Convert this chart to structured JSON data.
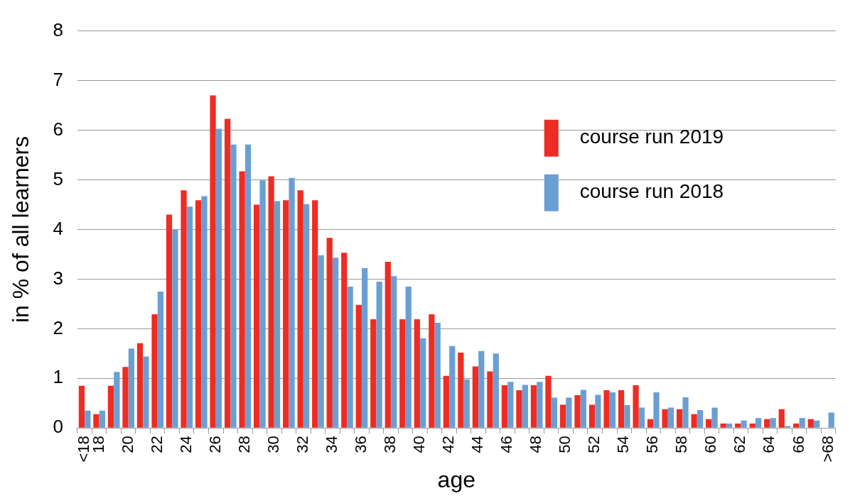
{
  "chart_data": {
    "type": "bar",
    "xlabel": "age",
    "ylabel": "in % of all learners",
    "categories": [
      "<18",
      "18",
      null,
      "20",
      null,
      "22",
      null,
      "24",
      null,
      "26",
      null,
      "28",
      null,
      "30",
      null,
      "32",
      null,
      "34",
      null,
      "36",
      null,
      "38",
      null,
      "40",
      null,
      "42",
      null,
      "44",
      null,
      "46",
      null,
      "48",
      null,
      "50",
      null,
      "52",
      null,
      "54",
      null,
      "56",
      null,
      "58",
      null,
      "60",
      null,
      "62",
      null,
      "64",
      null,
      "66",
      null,
      ">68"
    ],
    "series": [
      {
        "name": "course run 2019",
        "color": "#ee2c24",
        "values": [
          0.85,
          0.28,
          0.85,
          1.23,
          1.71,
          2.29,
          4.3,
          4.79,
          4.59,
          6.7,
          6.23,
          5.17,
          4.5,
          5.07,
          4.59,
          4.79,
          4.59,
          3.83,
          3.53,
          2.48,
          2.19,
          3.35,
          2.19,
          2.19,
          2.29,
          1.05,
          1.52,
          1.24,
          1.14,
          0.86,
          0.76,
          0.86,
          1.05,
          0.47,
          0.66,
          0.47,
          0.76,
          0.76,
          0.86,
          0.18,
          0.38,
          0.38,
          0.28,
          0.18,
          0.09,
          0.09,
          0.09,
          0.18,
          0.38,
          0.09,
          0.18,
          0
        ]
      },
      {
        "name": "course run 2018",
        "color": "#6a9fd4",
        "values": [
          0.35,
          0.35,
          1.13,
          1.6,
          1.44,
          2.75,
          4.0,
          4.46,
          4.67,
          6.03,
          5.71,
          5.71,
          4.99,
          4.57,
          5.04,
          4.51,
          3.48,
          3.43,
          2.85,
          3.22,
          2.95,
          3.06,
          2.85,
          1.81,
          2.12,
          1.65,
          0.98,
          1.55,
          1.5,
          0.93,
          0.87,
          0.93,
          0.61,
          0.61,
          0.77,
          0.67,
          0.72,
          0.46,
          0.41,
          0.72,
          0.41,
          0.62,
          0.36,
          0.41,
          0.09,
          0.15,
          0.2,
          0.2,
          0.04,
          0.2,
          0.15,
          0.31
        ]
      }
    ],
    "ylim": [
      0,
      8
    ],
    "yticks": [
      0,
      1,
      2,
      3,
      4,
      5,
      6,
      7,
      8
    ],
    "grid": "y",
    "legend": "right"
  }
}
